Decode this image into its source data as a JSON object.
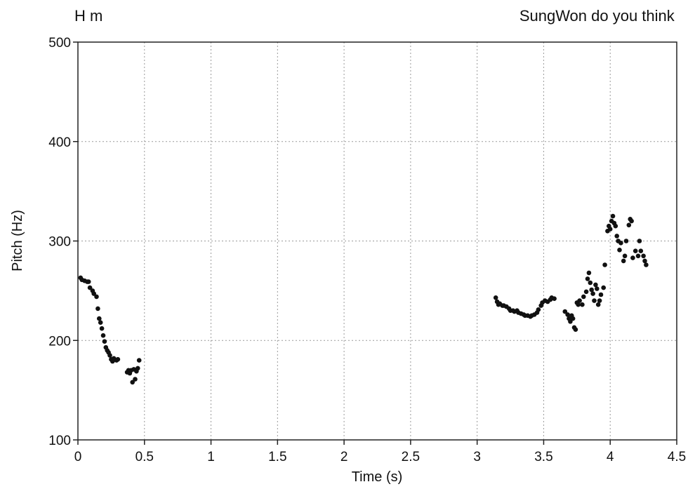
{
  "chart_data": {
    "type": "scatter",
    "title": "",
    "xlabel": "Time (s)",
    "ylabel": "Pitch (Hz)",
    "xlim": [
      0,
      4.5
    ],
    "ylim": [
      100,
      500
    ],
    "xticks": [
      "0",
      "0.5",
      "1",
      "1.5",
      "2",
      "2.5",
      "3",
      "3.5",
      "4",
      "4.5"
    ],
    "yticks": [
      "100",
      "200",
      "300",
      "400",
      "500"
    ],
    "grid": true,
    "annotations": [
      {
        "text": "H m",
        "x": 0.08
      },
      {
        "text": "SungWon do you think",
        "x": 3.9
      }
    ],
    "series": [
      {
        "color": "#111111",
        "points": [
          [
            0.02,
            263
          ],
          [
            0.03,
            261
          ],
          [
            0.05,
            260
          ],
          [
            0.07,
            259
          ],
          [
            0.08,
            259
          ],
          [
            0.09,
            253
          ],
          [
            0.11,
            250
          ],
          [
            0.12,
            247
          ],
          [
            0.14,
            244
          ],
          [
            0.15,
            232
          ],
          [
            0.16,
            222
          ],
          [
            0.17,
            218
          ],
          [
            0.18,
            212
          ],
          [
            0.19,
            205
          ],
          [
            0.2,
            199
          ],
          [
            0.21,
            193
          ],
          [
            0.22,
            190
          ],
          [
            0.23,
            188
          ],
          [
            0.24,
            185
          ],
          [
            0.25,
            181
          ],
          [
            0.26,
            179
          ],
          [
            0.27,
            182
          ],
          [
            0.29,
            180
          ],
          [
            0.3,
            181
          ],
          [
            0.37,
            168
          ],
          [
            0.38,
            170
          ],
          [
            0.39,
            167
          ],
          [
            0.4,
            170
          ],
          [
            0.41,
            158
          ],
          [
            0.42,
            171
          ],
          [
            0.43,
            161
          ],
          [
            0.44,
            169
          ],
          [
            0.45,
            172
          ],
          [
            0.46,
            180
          ],
          [
            3.14,
            243
          ],
          [
            3.15,
            239
          ],
          [
            3.16,
            236
          ],
          [
            3.17,
            237
          ],
          [
            3.19,
            235
          ],
          [
            3.2,
            235
          ],
          [
            3.22,
            234
          ],
          [
            3.24,
            232
          ],
          [
            3.25,
            230
          ],
          [
            3.27,
            230
          ],
          [
            3.28,
            229
          ],
          [
            3.3,
            230
          ],
          [
            3.31,
            228
          ],
          [
            3.33,
            227
          ],
          [
            3.35,
            226
          ],
          [
            3.36,
            225
          ],
          [
            3.38,
            225
          ],
          [
            3.4,
            224
          ],
          [
            3.41,
            225
          ],
          [
            3.43,
            226
          ],
          [
            3.45,
            228
          ],
          [
            3.46,
            231
          ],
          [
            3.48,
            235
          ],
          [
            3.49,
            238
          ],
          [
            3.51,
            240
          ],
          [
            3.53,
            239
          ],
          [
            3.55,
            241
          ],
          [
            3.56,
            243
          ],
          [
            3.58,
            242
          ],
          [
            3.66,
            229
          ],
          [
            3.68,
            226
          ],
          [
            3.69,
            222
          ],
          [
            3.7,
            219
          ],
          [
            3.71,
            225
          ],
          [
            3.72,
            222
          ],
          [
            3.73,
            213
          ],
          [
            3.74,
            211
          ],
          [
            3.75,
            238
          ],
          [
            3.76,
            236
          ],
          [
            3.77,
            240
          ],
          [
            3.79,
            236
          ],
          [
            3.8,
            244
          ],
          [
            3.82,
            249
          ],
          [
            3.83,
            262
          ],
          [
            3.84,
            268
          ],
          [
            3.85,
            258
          ],
          [
            3.86,
            251
          ],
          [
            3.87,
            247
          ],
          [
            3.88,
            240
          ],
          [
            3.89,
            256
          ],
          [
            3.9,
            252
          ],
          [
            3.91,
            236
          ],
          [
            3.92,
            240
          ],
          [
            3.93,
            246
          ],
          [
            3.95,
            253
          ],
          [
            3.96,
            276
          ],
          [
            3.98,
            310
          ],
          [
            3.99,
            315
          ],
          [
            4.0,
            312
          ],
          [
            4.01,
            320
          ],
          [
            4.02,
            325
          ],
          [
            4.03,
            318
          ],
          [
            4.04,
            315
          ],
          [
            4.05,
            305
          ],
          [
            4.06,
            300
          ],
          [
            4.07,
            291
          ],
          [
            4.08,
            298
          ],
          [
            4.1,
            280
          ],
          [
            4.11,
            285
          ],
          [
            4.12,
            300
          ],
          [
            4.14,
            316
          ],
          [
            4.15,
            322
          ],
          [
            4.16,
            320
          ],
          [
            4.17,
            283
          ],
          [
            4.19,
            290
          ],
          [
            4.21,
            285
          ],
          [
            4.22,
            300
          ],
          [
            4.23,
            290
          ],
          [
            4.25,
            285
          ],
          [
            4.26,
            280
          ],
          [
            4.27,
            276
          ]
        ]
      }
    ]
  }
}
